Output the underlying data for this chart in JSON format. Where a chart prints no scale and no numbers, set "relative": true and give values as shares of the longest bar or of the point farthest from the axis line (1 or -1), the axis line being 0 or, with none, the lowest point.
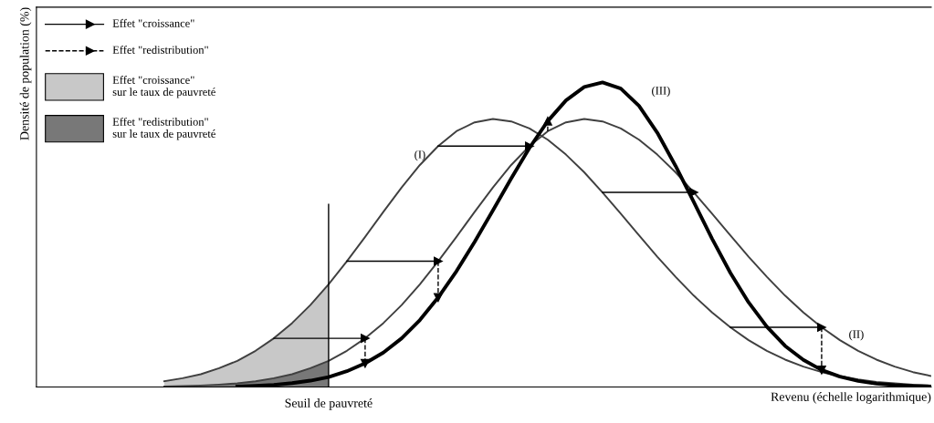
{
  "chart_data": {
    "type": "line",
    "relative": true,
    "xlabel": "Revenu (échelle logarithmique)",
    "ylabel": "Densité de population (%)",
    "categories": [
      null,
      null,
      null,
      null,
      null,
      null,
      null,
      null,
      null,
      null,
      null,
      null,
      null,
      null,
      null,
      null,
      null,
      null,
      null,
      null,
      null,
      null,
      null,
      null,
      null,
      null,
      null,
      null,
      null,
      null,
      null,
      null,
      null,
      null,
      null,
      null,
      null,
      null,
      null,
      null,
      null,
      null,
      null,
      null,
      null,
      null,
      null,
      null,
      null,
      null
    ],
    "annotations": [
      "Effet \"croissance\"",
      "Effet \"redistribution\"",
      "Effet \"croissance\"\nsur le taux de pauvreté",
      "Effet \"redistribution\"\nsur le taux de pauvreté",
      "Seuil de pauvreté"
    ],
    "series": [
      {
        "name": "(I)",
        "color": "#404040",
        "values": [
          null,
          null,
          null,
          null,
          null,
          null,
          null,
          0.019,
          0.029,
          0.042,
          0.062,
          0.086,
          0.119,
          0.16,
          0.21,
          0.269,
          0.337,
          0.413,
          0.493,
          0.575,
          0.655,
          0.729,
          0.791,
          0.84,
          0.869,
          0.88,
          0.872,
          0.849,
          0.812,
          0.763,
          0.705,
          0.639,
          0.569,
          0.498,
          0.428,
          0.362,
          0.3,
          0.245,
          0.196,
          0.154,
          0.119,
          0.09,
          0.067,
          0.049,
          0.036,
          0.025,
          0.017,
          0.012,
          0.008,
          0.005
        ]
      },
      {
        "name": "(II)",
        "color": "#404040",
        "values": [
          null,
          null,
          null,
          null,
          null,
          null,
          null,
          0.002,
          0.003,
          0.005,
          0.008,
          0.012,
          0.019,
          0.029,
          0.042,
          0.062,
          0.086,
          0.119,
          0.16,
          0.21,
          0.269,
          0.337,
          0.413,
          0.493,
          0.575,
          0.655,
          0.729,
          0.791,
          0.84,
          0.869,
          0.88,
          0.872,
          0.849,
          0.812,
          0.763,
          0.705,
          0.639,
          0.569,
          0.498,
          0.428,
          0.362,
          0.3,
          0.245,
          0.196,
          0.154,
          0.119,
          0.09,
          0.067,
          0.049,
          0.036
        ]
      },
      {
        "name": "(III)",
        "color": "#000000",
        "values": [
          null,
          null,
          null,
          null,
          null,
          null,
          null,
          null,
          null,
          null,
          null,
          0.002,
          0.004,
          0.007,
          0.013,
          0.021,
          0.033,
          0.052,
          0.078,
          0.113,
          0.16,
          0.22,
          0.294,
          0.38,
          0.477,
          0.58,
          0.685,
          0.785,
          0.873,
          0.941,
          0.985,
          1.0,
          0.98,
          0.923,
          0.835,
          0.726,
          0.607,
          0.487,
          0.375,
          0.278,
          0.198,
          0.135,
          0.089,
          0.056,
          0.034,
          0.02,
          0.011,
          0.006,
          0.003,
          0.002
        ]
      }
    ]
  }
}
